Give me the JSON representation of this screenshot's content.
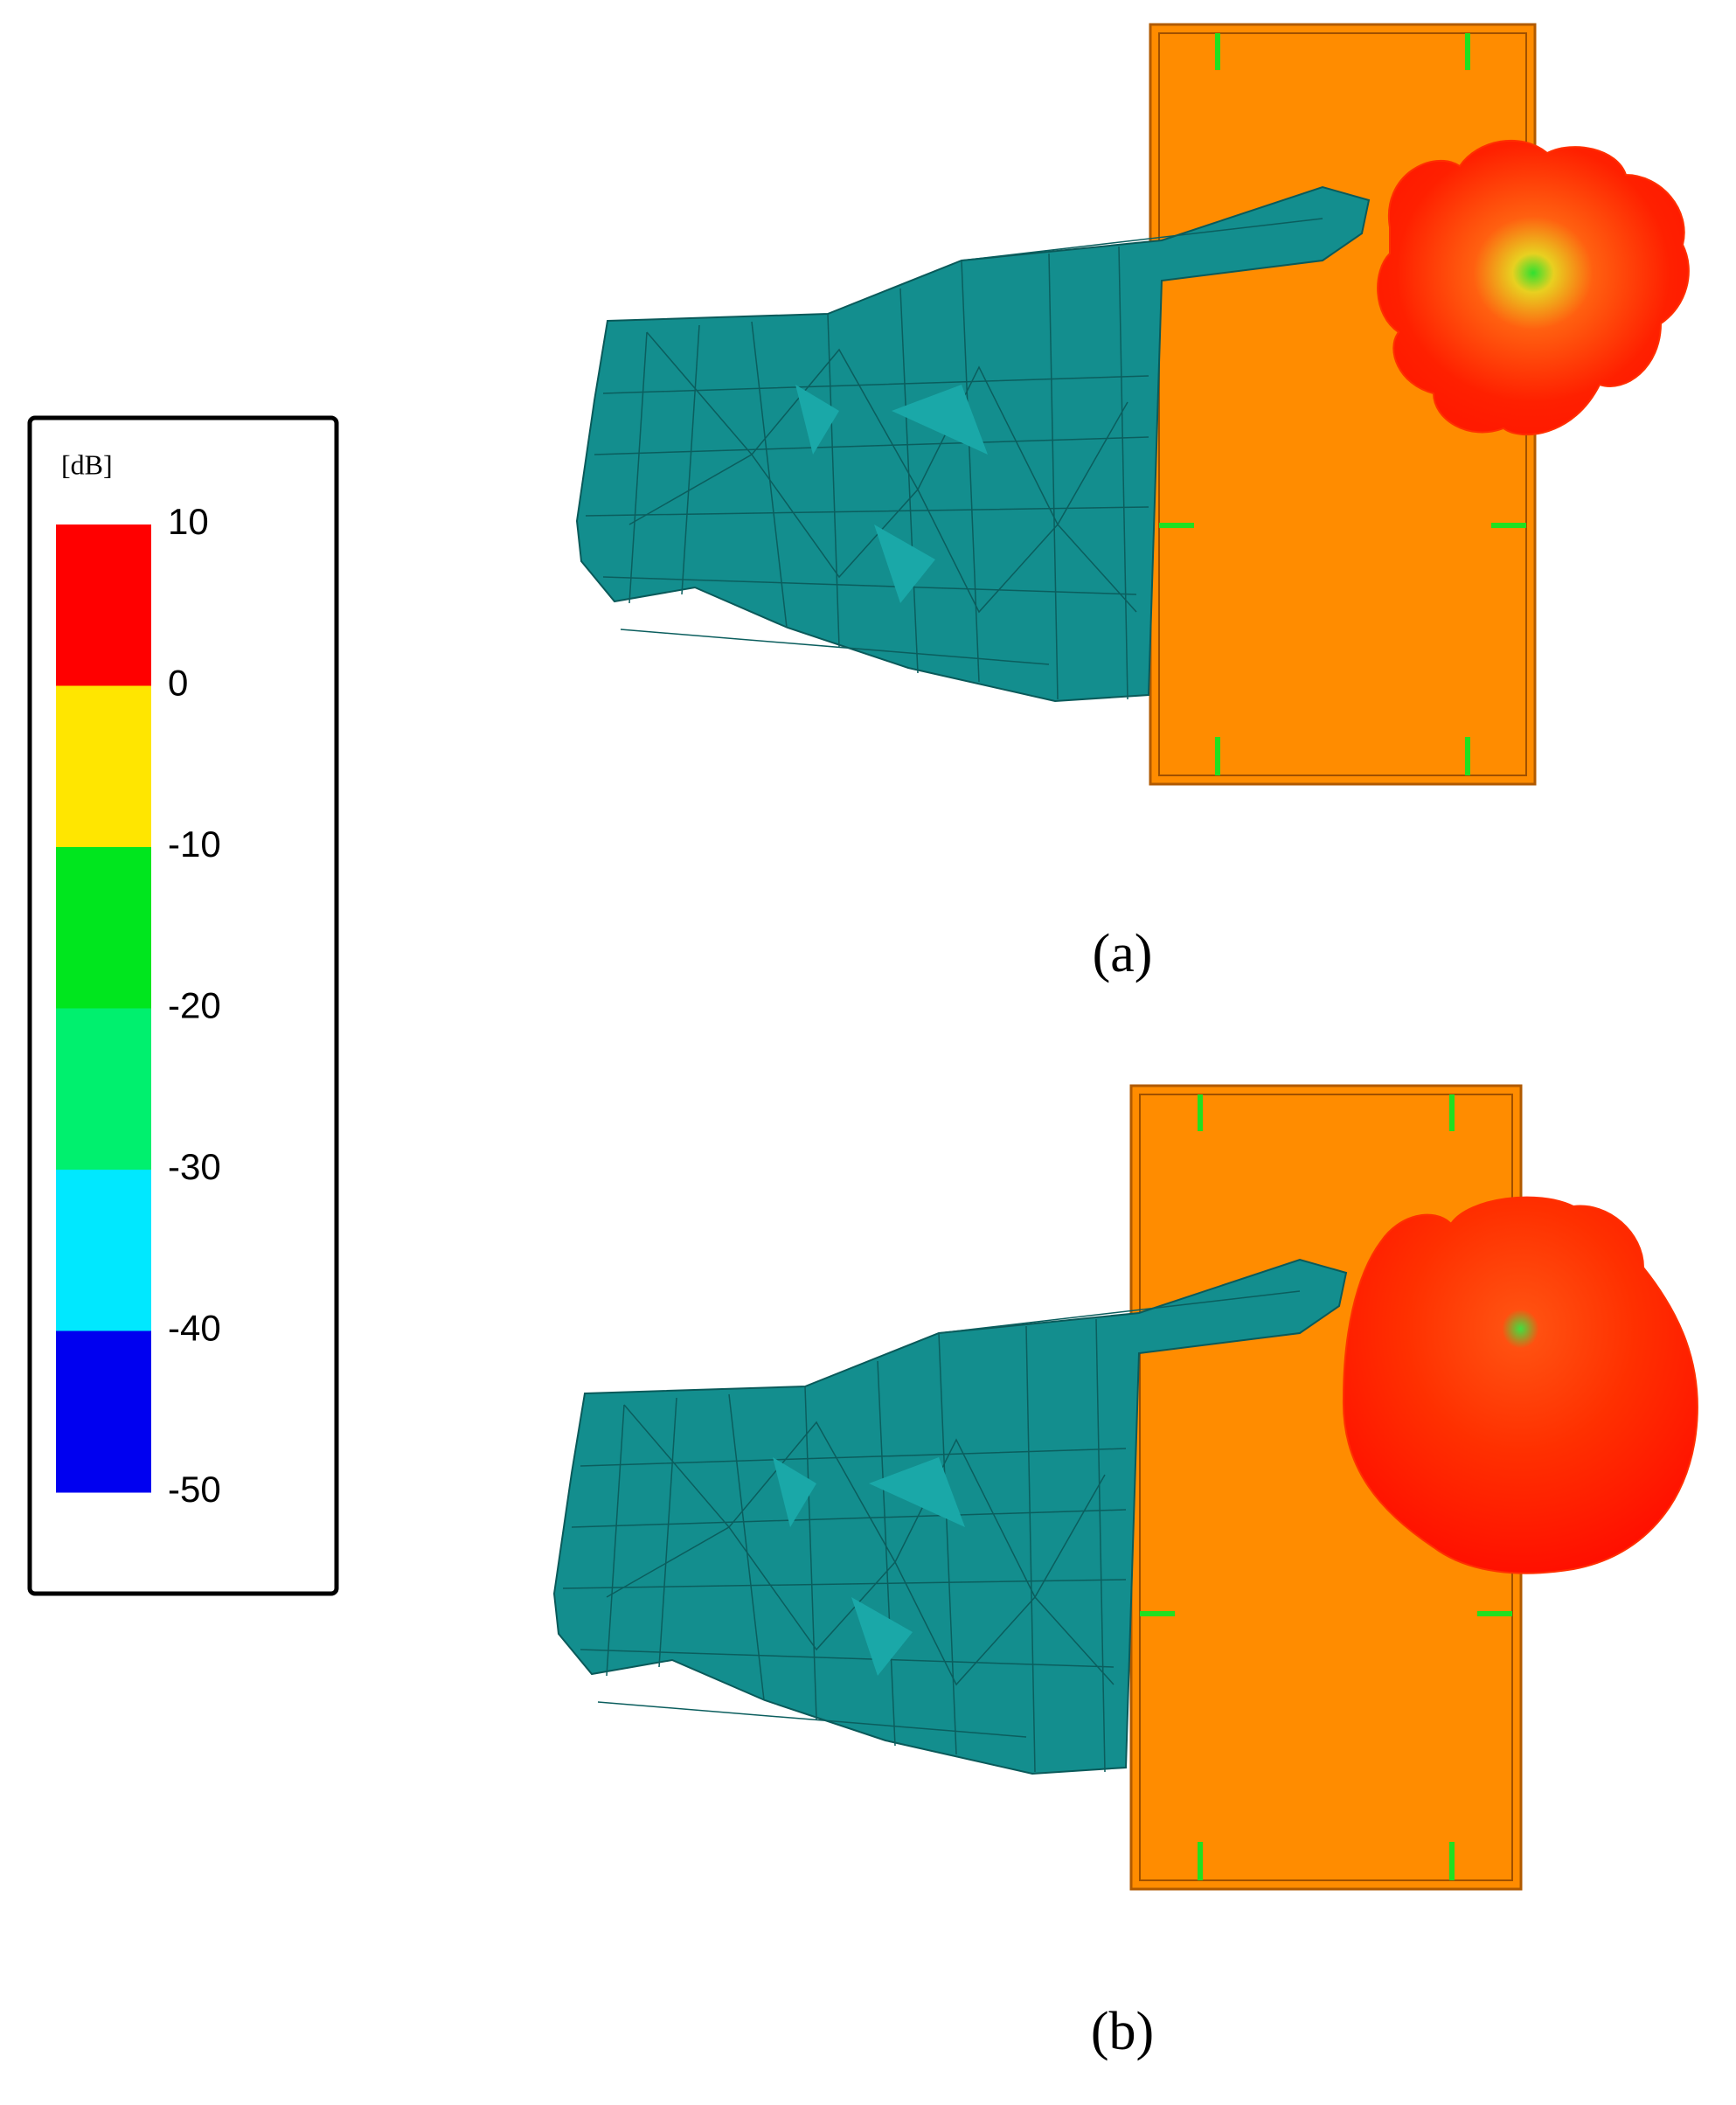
{
  "colorbar": {
    "unit": "[dB]",
    "ticks": [
      "10",
      "0",
      "-10",
      "-20",
      "-30",
      "-40",
      "-50"
    ],
    "colors": [
      "#ff0000",
      "#ffe600",
      "#00e61e",
      "#00f06e",
      "#00e8ff",
      "#0000f0"
    ]
  },
  "panels": [
    {
      "label": "(a)"
    },
    {
      "label": "(b)"
    }
  ]
}
